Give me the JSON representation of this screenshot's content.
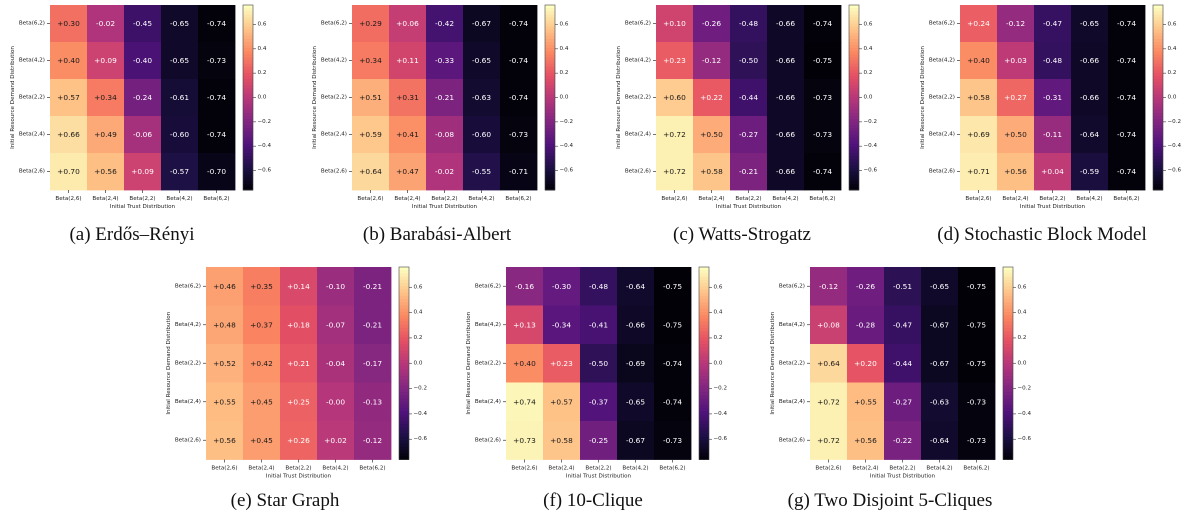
{
  "figure": {
    "row_labels": [
      "Beta(6,2)",
      "Beta(4,2)",
      "Beta(2,2)",
      "Beta(2,4)",
      "Beta(2,6)"
    ],
    "col_labels": [
      "Beta(2,6)",
      "Beta(2,4)",
      "Beta(2,2)",
      "Beta(4,2)",
      "Beta(6,2)"
    ],
    "xlabel": "Initial Trust Distribution",
    "ylabel": "Initial Resource Demand Distribution",
    "colorbar_ticks": [
      "0.6",
      "0.4",
      "0.2",
      "0.0",
      "−0.2",
      "−0.4",
      "−0.6"
    ],
    "colormap": "magma"
  },
  "chart_data": [
    {
      "type": "heatmap",
      "caption": "(a) Erdős–Rényi",
      "x_categories": [
        "Beta(2,6)",
        "Beta(2,4)",
        "Beta(2,2)",
        "Beta(4,2)",
        "Beta(6,2)"
      ],
      "y_categories": [
        "Beta(6,2)",
        "Beta(4,2)",
        "Beta(2,2)",
        "Beta(2,4)",
        "Beta(2,6)"
      ],
      "xlabel": "Initial Trust Distribution",
      "ylabel": "Initial Resource Demand Distribution",
      "colorbar_range": [
        -0.76,
        0.76
      ],
      "values": [
        [
          0.3,
          -0.02,
          -0.45,
          -0.65,
          -0.74
        ],
        [
          0.4,
          0.09,
          -0.4,
          -0.65,
          -0.73
        ],
        [
          0.57,
          0.34,
          -0.24,
          -0.61,
          -0.74
        ],
        [
          0.66,
          0.49,
          -0.06,
          -0.6,
          -0.74
        ],
        [
          0.7,
          0.56,
          0.09,
          -0.57,
          -0.7
        ]
      ],
      "labels": [
        [
          "+0.30",
          "-0.02",
          "-0.45",
          "-0.65",
          "-0.74"
        ],
        [
          "+0.40",
          "+0.09",
          "-0.40",
          "-0.65",
          "-0.73"
        ],
        [
          "+0.57",
          "+0.34",
          "-0.24",
          "-0.61",
          "-0.74"
        ],
        [
          "+0.66",
          "+0.49",
          "-0.06",
          "-0.60",
          "-0.74"
        ],
        [
          "+0.70",
          "+0.56",
          "+0.09",
          "-0.57",
          "-0.70"
        ]
      ]
    },
    {
      "type": "heatmap",
      "caption": "(b) Barabási-Albert",
      "x_categories": [
        "Beta(2,6)",
        "Beta(2,4)",
        "Beta(2,2)",
        "Beta(4,2)",
        "Beta(6,2)"
      ],
      "y_categories": [
        "Beta(6,2)",
        "Beta(4,2)",
        "Beta(2,2)",
        "Beta(2,4)",
        "Beta(2,6)"
      ],
      "xlabel": "Initial Trust Distribution",
      "ylabel": "Initial Resource Demand Distribution",
      "colorbar_range": [
        -0.76,
        0.76
      ],
      "values": [
        [
          0.29,
          0.06,
          -0.42,
          -0.67,
          -0.74
        ],
        [
          0.34,
          0.11,
          -0.33,
          -0.65,
          -0.74
        ],
        [
          0.51,
          0.31,
          -0.21,
          -0.63,
          -0.74
        ],
        [
          0.59,
          0.41,
          -0.08,
          -0.6,
          -0.73
        ],
        [
          0.64,
          0.47,
          -0.02,
          -0.55,
          -0.71
        ]
      ],
      "labels": [
        [
          "+0.29",
          "+0.06",
          "-0.42",
          "-0.67",
          "-0.74"
        ],
        [
          "+0.34",
          "+0.11",
          "-0.33",
          "-0.65",
          "-0.74"
        ],
        [
          "+0.51",
          "+0.31",
          "-0.21",
          "-0.63",
          "-0.74"
        ],
        [
          "+0.59",
          "+0.41",
          "-0.08",
          "-0.60",
          "-0.73"
        ],
        [
          "+0.64",
          "+0.47",
          "-0.02",
          "-0.55",
          "-0.71"
        ]
      ]
    },
    {
      "type": "heatmap",
      "caption": "(c) Watts-Strogatz",
      "x_categories": [
        "Beta(2,6)",
        "Beta(2,4)",
        "Beta(2,2)",
        "Beta(4,2)",
        "Beta(6,2)"
      ],
      "y_categories": [
        "Beta(6,2)",
        "Beta(4,2)",
        "Beta(2,2)",
        "Beta(2,4)",
        "Beta(2,6)"
      ],
      "xlabel": "Initial Trust Distribution",
      "ylabel": "Initial Resource Demand Distribution",
      "colorbar_range": [
        -0.76,
        0.76
      ],
      "values": [
        [
          0.1,
          -0.26,
          -0.48,
          -0.66,
          -0.74
        ],
        [
          0.23,
          -0.12,
          -0.5,
          -0.66,
          -0.75
        ],
        [
          0.6,
          0.22,
          -0.44,
          -0.66,
          -0.73
        ],
        [
          0.72,
          0.5,
          -0.27,
          -0.66,
          -0.73
        ],
        [
          0.72,
          0.58,
          -0.21,
          -0.66,
          -0.74
        ]
      ],
      "labels": [
        [
          "+0.10",
          "-0.26",
          "-0.48",
          "-0.66",
          "-0.74"
        ],
        [
          "+0.23",
          "-0.12",
          "-0.50",
          "-0.66",
          "-0.75"
        ],
        [
          "+0.60",
          "+0.22",
          "-0.44",
          "-0.66",
          "-0.73"
        ],
        [
          "+0.72",
          "+0.50",
          "-0.27",
          "-0.66",
          "-0.73"
        ],
        [
          "+0.72",
          "+0.58",
          "-0.21",
          "-0.66",
          "-0.74"
        ]
      ]
    },
    {
      "type": "heatmap",
      "caption": "(d) Stochastic Block Model",
      "x_categories": [
        "Beta(2,6)",
        "Beta(2,4)",
        "Beta(2,2)",
        "Beta(4,2)",
        "Beta(6,2)"
      ],
      "y_categories": [
        "Beta(6,2)",
        "Beta(4,2)",
        "Beta(2,2)",
        "Beta(2,4)",
        "Beta(2,6)"
      ],
      "xlabel": "Initial Trust Distribution",
      "ylabel": "Initial Resource Demand Distribution",
      "colorbar_range": [
        -0.76,
        0.76
      ],
      "values": [
        [
          0.24,
          -0.12,
          -0.47,
          -0.65,
          -0.74
        ],
        [
          0.4,
          0.03,
          -0.48,
          -0.66,
          -0.74
        ],
        [
          0.58,
          0.27,
          -0.31,
          -0.66,
          -0.74
        ],
        [
          0.69,
          0.5,
          -0.11,
          -0.64,
          -0.74
        ],
        [
          0.71,
          0.56,
          0.04,
          -0.59,
          -0.74
        ]
      ],
      "labels": [
        [
          "+0.24",
          "-0.12",
          "-0.47",
          "-0.65",
          "-0.74"
        ],
        [
          "+0.40",
          "+0.03",
          "-0.48",
          "-0.66",
          "-0.74"
        ],
        [
          "+0.58",
          "+0.27",
          "-0.31",
          "-0.66",
          "-0.74"
        ],
        [
          "+0.69",
          "+0.50",
          "-0.11",
          "-0.64",
          "-0.74"
        ],
        [
          "+0.71",
          "+0.56",
          "+0.04",
          "-0.59",
          "-0.74"
        ]
      ]
    },
    {
      "type": "heatmap",
      "caption": "(e) Star Graph",
      "x_categories": [
        "Beta(2,6)",
        "Beta(2,4)",
        "Beta(2,2)",
        "Beta(4,2)",
        "Beta(6,2)"
      ],
      "y_categories": [
        "Beta(6,2)",
        "Beta(4,2)",
        "Beta(2,2)",
        "Beta(2,4)",
        "Beta(2,6)"
      ],
      "xlabel": "Initial Trust Distribution",
      "ylabel": "Initial Resource Demand Distribution",
      "colorbar_range": [
        -0.76,
        0.76
      ],
      "values": [
        [
          0.46,
          0.35,
          0.14,
          -0.1,
          -0.21
        ],
        [
          0.48,
          0.37,
          0.18,
          -0.07,
          -0.21
        ],
        [
          0.52,
          0.42,
          0.21,
          -0.04,
          -0.17
        ],
        [
          0.55,
          0.45,
          0.25,
          0.0,
          -0.13
        ],
        [
          0.56,
          0.45,
          0.26,
          0.02,
          -0.12
        ]
      ],
      "labels": [
        [
          "+0.46",
          "+0.35",
          "+0.14",
          "-0.10",
          "-0.21"
        ],
        [
          "+0.48",
          "+0.37",
          "+0.18",
          "-0.07",
          "-0.21"
        ],
        [
          "+0.52",
          "+0.42",
          "+0.21",
          "-0.04",
          "-0.17"
        ],
        [
          "+0.55",
          "+0.45",
          "+0.25",
          "-0.00",
          "-0.13"
        ],
        [
          "+0.56",
          "+0.45",
          "+0.26",
          "+0.02",
          "-0.12"
        ]
      ]
    },
    {
      "type": "heatmap",
      "caption": "(f) 10-Clique",
      "x_categories": [
        "Beta(2,6)",
        "Beta(2,4)",
        "Beta(2,2)",
        "Beta(4,2)",
        "Beta(6,2)"
      ],
      "y_categories": [
        "Beta(6,2)",
        "Beta(4,2)",
        "Beta(2,2)",
        "Beta(2,4)",
        "Beta(2,6)"
      ],
      "xlabel": "Initial Trust Distribution",
      "ylabel": "Initial Resource Demand Distribution",
      "colorbar_range": [
        -0.76,
        0.76
      ],
      "values": [
        [
          -0.16,
          -0.3,
          -0.48,
          -0.64,
          -0.75
        ],
        [
          0.13,
          -0.34,
          -0.41,
          -0.66,
          -0.75
        ],
        [
          0.4,
          0.23,
          -0.5,
          -0.69,
          -0.74
        ],
        [
          0.74,
          0.57,
          -0.37,
          -0.65,
          -0.74
        ],
        [
          0.73,
          0.58,
          -0.25,
          -0.67,
          -0.73
        ]
      ],
      "labels": [
        [
          "-0.16",
          "-0.30",
          "-0.48",
          "-0.64",
          "-0.75"
        ],
        [
          "+0.13",
          "-0.34",
          "-0.41",
          "-0.66",
          "-0.75"
        ],
        [
          "+0.40",
          "+0.23",
          "-0.50",
          "-0.69",
          "-0.74"
        ],
        [
          "+0.74",
          "+0.57",
          "-0.37",
          "-0.65",
          "-0.74"
        ],
        [
          "+0.73",
          "+0.58",
          "-0.25",
          "-0.67",
          "-0.73"
        ]
      ]
    },
    {
      "type": "heatmap",
      "caption": "(g) Two Disjoint 5-Cliques",
      "x_categories": [
        "Beta(2,6)",
        "Beta(2,4)",
        "Beta(2,2)",
        "Beta(4,2)",
        "Beta(6,2)"
      ],
      "y_categories": [
        "Beta(6,2)",
        "Beta(4,2)",
        "Beta(2,2)",
        "Beta(2,4)",
        "Beta(2,6)"
      ],
      "xlabel": "Initial Trust Distribution",
      "ylabel": "Initial Resource Demand Distribution",
      "colorbar_range": [
        -0.76,
        0.76
      ],
      "values": [
        [
          -0.12,
          -0.26,
          -0.51,
          -0.65,
          -0.75
        ],
        [
          0.08,
          -0.28,
          -0.47,
          -0.67,
          -0.75
        ],
        [
          0.64,
          0.2,
          -0.44,
          -0.67,
          -0.75
        ],
        [
          0.72,
          0.55,
          -0.27,
          -0.63,
          -0.73
        ],
        [
          0.72,
          0.56,
          -0.22,
          -0.64,
          -0.73
        ]
      ],
      "labels": [
        [
          "-0.12",
          "-0.26",
          "-0.51",
          "-0.65",
          "-0.75"
        ],
        [
          "+0.08",
          "-0.28",
          "-0.47",
          "-0.67",
          "-0.75"
        ],
        [
          "+0.64",
          "+0.20",
          "-0.44",
          "-0.67",
          "-0.75"
        ],
        [
          "+0.72",
          "+0.55",
          "-0.27",
          "-0.63",
          "-0.73"
        ],
        [
          "+0.72",
          "+0.56",
          "-0.22",
          "-0.64",
          "-0.73"
        ]
      ]
    }
  ]
}
